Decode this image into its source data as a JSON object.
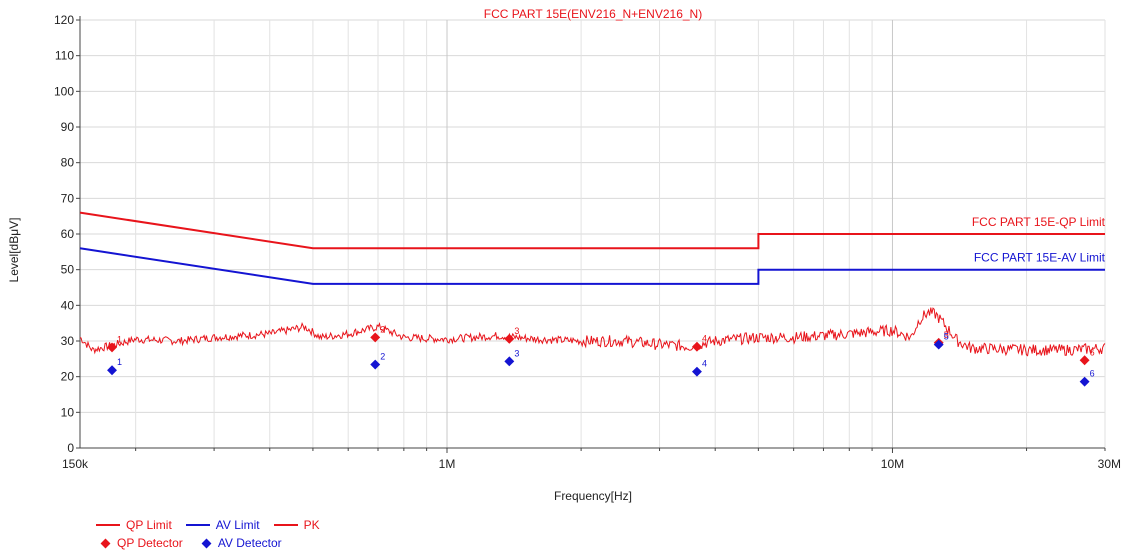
{
  "chart_data": {
    "type": "line",
    "title": "FCC PART 15E(ENV216_N+ENV216_N)",
    "xlabel": "Frequency[Hz]",
    "ylabel": "Level[dBμV]",
    "x_scale": "log",
    "xlim": [
      150000,
      30000000
    ],
    "ylim": [
      0,
      120
    ],
    "grid": true,
    "x_ticks": [
      {
        "value": 150000,
        "label": "150k"
      },
      {
        "value": 1000000,
        "label": "1M"
      },
      {
        "value": 10000000,
        "label": "10M"
      },
      {
        "value": 30000000,
        "label": "30M"
      }
    ],
    "y_ticks": [
      0,
      10,
      20,
      30,
      40,
      50,
      60,
      70,
      80,
      90,
      100,
      110,
      120
    ],
    "series": [
      {
        "name": "QP Limit",
        "color": "#e8141b",
        "points": [
          [
            150000,
            66
          ],
          [
            500000,
            56
          ],
          [
            5000000,
            56
          ],
          [
            5000000,
            60
          ],
          [
            30000000,
            60
          ]
        ]
      },
      {
        "name": "AV Limit",
        "color": "#1414d2",
        "points": [
          [
            150000,
            56
          ],
          [
            500000,
            46
          ],
          [
            5000000,
            46
          ],
          [
            5000000,
            50
          ],
          [
            30000000,
            50
          ]
        ]
      },
      {
        "name": "PK",
        "color": "#e8141b",
        "points": [
          [
            150000,
            31
          ],
          [
            160000,
            27.5
          ],
          [
            180000,
            29
          ],
          [
            200000,
            30.5
          ],
          [
            250000,
            30
          ],
          [
            300000,
            31
          ],
          [
            400000,
            32
          ],
          [
            480000,
            34
          ],
          [
            520000,
            31
          ],
          [
            600000,
            32
          ],
          [
            700000,
            34
          ],
          [
            800000,
            31
          ],
          [
            1000000,
            30.5
          ],
          [
            1300000,
            31.5
          ],
          [
            1600000,
            30.5
          ],
          [
            2000000,
            30
          ],
          [
            2500000,
            30
          ],
          [
            3000000,
            29
          ],
          [
            3500000,
            28.5
          ],
          [
            4000000,
            30
          ],
          [
            5000000,
            31
          ],
          [
            6000000,
            31
          ],
          [
            7000000,
            31.5
          ],
          [
            8000000,
            32
          ],
          [
            10000000,
            33
          ],
          [
            11000000,
            31
          ],
          [
            11500000,
            36
          ],
          [
            12000000,
            38
          ],
          [
            12500000,
            37.5
          ],
          [
            13000000,
            35
          ],
          [
            14000000,
            30
          ],
          [
            15000000,
            28
          ],
          [
            20000000,
            27.5
          ],
          [
            25000000,
            27.5
          ],
          [
            30000000,
            28
          ]
        ]
      }
    ],
    "markers": [
      {
        "series": "QP Detector",
        "color": "#e8141b",
        "points": [
          {
            "label": "1",
            "x": 177000,
            "y": 28.2
          },
          {
            "label": "2",
            "x": 690000,
            "y": 31
          },
          {
            "label": "3",
            "x": 1380000,
            "y": 30.6
          },
          {
            "label": "4",
            "x": 3640000,
            "y": 28.4
          },
          {
            "label": "5",
            "x": 12700000,
            "y": 29.5
          },
          {
            "label": "6",
            "x": 27000000,
            "y": 24.6
          }
        ]
      },
      {
        "series": "AV Detector",
        "color": "#1414d2",
        "points": [
          {
            "label": "1",
            "x": 177000,
            "y": 21.8
          },
          {
            "label": "2",
            "x": 690000,
            "y": 23.4
          },
          {
            "label": "3",
            "x": 1380000,
            "y": 24.3
          },
          {
            "label": "4",
            "x": 3640000,
            "y": 21.4
          },
          {
            "label": "5",
            "x": 12700000,
            "y": 29
          },
          {
            "label": "6",
            "x": 27000000,
            "y": 18.6
          }
        ]
      }
    ],
    "limit_labels": [
      {
        "text": "FCC PART 15E-QP Limit",
        "y": 60,
        "color": "#e8141b"
      },
      {
        "text": "FCC PART 15E-AV Limit",
        "y": 50,
        "color": "#1414d2"
      }
    ],
    "legend": {
      "position": "bottom-left",
      "items": [
        {
          "label": "QP Limit",
          "kind": "line",
          "color": "#e8141b"
        },
        {
          "label": "AV Limit",
          "kind": "line",
          "color": "#1414d2"
        },
        {
          "label": "PK",
          "kind": "line",
          "color": "#e8141b"
        },
        {
          "label": "QP Detector",
          "kind": "diamond",
          "color": "#e8141b"
        },
        {
          "label": "AV Detector",
          "kind": "diamond",
          "color": "#1414d2"
        }
      ]
    }
  }
}
